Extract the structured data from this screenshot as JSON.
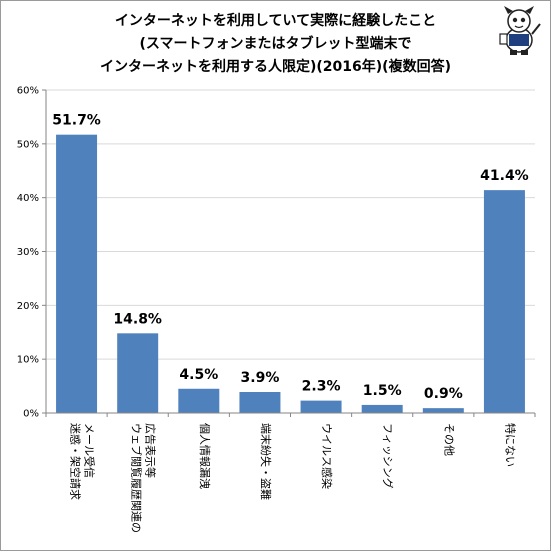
{
  "title": {
    "line1": "インターネットを利用していて実際に経験したこと",
    "line2": "(スマートフォンまたはタブレット型端末で",
    "line3": "インターネットを利用する人限定)(2016年)(複数回答)"
  },
  "colors": {
    "bar": "#4f81bd",
    "axis": "#868686",
    "grid": "#d9d9d9",
    "border": "#9a9a9a"
  },
  "chart_data": {
    "type": "bar",
    "title": "インターネットを利用していて実際に経験したこと (スマートフォンまたはタブレット型端末で インターネットを利用する人限定)(2016年)(複数回答)",
    "categories": [
      [
        "迷惑・架空請求",
        "メール受信"
      ],
      [
        "ウェブ閲覧履歴関連の",
        "広告表示等"
      ],
      [
        "個人情報漏洩"
      ],
      [
        "端末紛失・盗難"
      ],
      [
        "ウイルス感染"
      ],
      [
        "フィッシング"
      ],
      [
        "その他"
      ],
      [
        "特にない"
      ]
    ],
    "values": [
      51.7,
      14.8,
      4.5,
      3.9,
      2.3,
      1.5,
      0.9,
      41.4
    ],
    "value_labels": [
      "51.7%",
      "14.8%",
      "4.5%",
      "3.9%",
      "2.3%",
      "1.5%",
      "0.9%",
      "41.4%"
    ],
    "yticks": [
      "0%",
      "10%",
      "20%",
      "30%",
      "40%",
      "50%",
      "60%"
    ],
    "ylim": [
      0,
      60
    ],
    "xlabel": "",
    "ylabel": "",
    "grid": true,
    "legend": "none"
  }
}
